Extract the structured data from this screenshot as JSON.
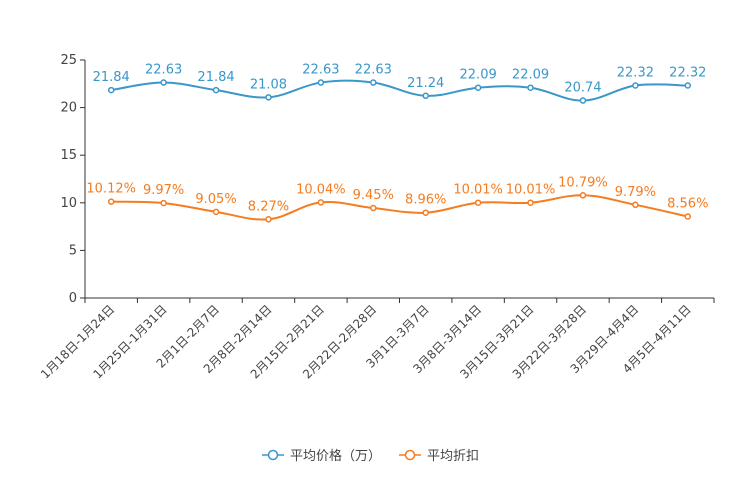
{
  "chart_data": {
    "type": "line",
    "categories": [
      "1月18日-1月24日",
      "1月25日-1月31日",
      "2月1日-2月7日",
      "2月8日-2月14日",
      "2月15日-2月21日",
      "2月22日-2月28日",
      "3月1日-3月7日",
      "3月8日-3月14日",
      "3月15日-3月21日",
      "3月22日-3月28日",
      "3月29日-4月4日",
      "4月5日-4月11日"
    ],
    "ylim": [
      0,
      25
    ],
    "yticks": [
      0,
      5,
      10,
      15,
      20,
      25
    ],
    "grid": false,
    "legend_position": "bottom-center",
    "series": [
      {
        "name": "平均价格（万）",
        "color": "#3a97c9",
        "values": [
          21.84,
          22.63,
          21.84,
          21.08,
          22.63,
          22.63,
          21.24,
          22.09,
          22.09,
          20.74,
          22.32,
          22.32
        ],
        "labels": [
          "21.84",
          "22.63",
          "21.84",
          "21.08",
          "22.63",
          "22.63",
          "21.24",
          "22.09",
          "22.09",
          "20.74",
          "22.32",
          "22.32"
        ]
      },
      {
        "name": "平均折扣",
        "color": "#f57c1f",
        "values": [
          10.12,
          9.97,
          9.05,
          8.27,
          10.04,
          9.45,
          8.96,
          10.01,
          10.01,
          10.79,
          9.79,
          8.56
        ],
        "labels": [
          "10.12%",
          "9.97%",
          "9.05%",
          "8.27%",
          "10.04%",
          "9.45%",
          "8.96%",
          "10.01%",
          "10.01%",
          "10.79%",
          "9.79%",
          "8.56%"
        ]
      }
    ]
  }
}
